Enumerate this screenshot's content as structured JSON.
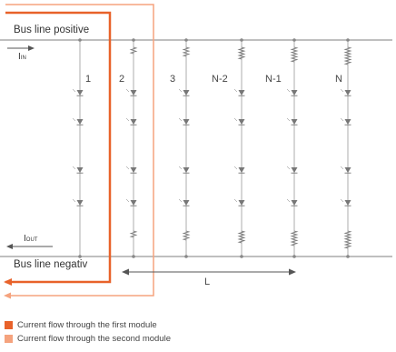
{
  "labels": {
    "bus_positive": "Bus line positive",
    "bus_negative": "Bus line negativ",
    "i_in": "I",
    "i_in_sub": "IN",
    "i_out": "I",
    "i_out_sub": "OUT",
    "distance": "L"
  },
  "modules": [
    "1",
    "2",
    "3",
    "N-2",
    "N-1",
    "N"
  ],
  "legend": [
    {
      "label": "Current flow through the first module",
      "color": "#e8622a"
    },
    {
      "label": "Current flow through the second module",
      "color": "#f5a37e"
    }
  ],
  "colors": {
    "bus_line": "#999999",
    "first_module_current": "#e8622a",
    "second_module_current": "#f5a37e",
    "led": "#777777"
  }
}
